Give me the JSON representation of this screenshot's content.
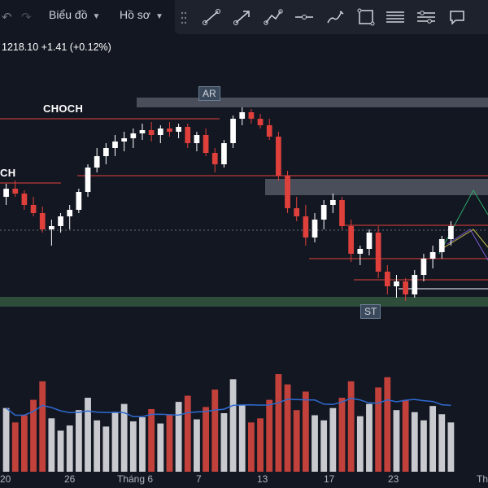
{
  "toolbar": {
    "menu_chart": "Biểu đồ",
    "menu_profile": "Hồ sơ",
    "tools": [
      "trend-line-icon",
      "arrow-line-icon",
      "path-icon",
      "horizontal-line-icon",
      "brush-icon",
      "rectangle-icon",
      "text-lines-icon",
      "settings-lines-icon",
      "comment-icon"
    ]
  },
  "price_readout": "1218.10  +1.41 (+0.12%)",
  "labels": {
    "choch_top": "CHOCH",
    "choch_left": "CH",
    "ar": "AR",
    "st": "ST"
  },
  "colors": {
    "up": "#ffffff",
    "down": "#e0403b",
    "line": "#e0403b",
    "ma": "#2f6ad0"
  },
  "chart_data": {
    "type": "candlestick",
    "x_ticks": [
      "20",
      "26",
      "Tháng 6",
      "7",
      "13",
      "17",
      "23",
      "Th"
    ],
    "ohlc": [
      [
        1170,
        1178,
        1165,
        1175
      ],
      [
        1175,
        1180,
        1170,
        1172
      ],
      [
        1172,
        1174,
        1162,
        1165
      ],
      [
        1165,
        1170,
        1158,
        1160
      ],
      [
        1160,
        1164,
        1148,
        1150
      ],
      [
        1150,
        1156,
        1140,
        1152
      ],
      [
        1152,
        1160,
        1148,
        1158
      ],
      [
        1158,
        1165,
        1150,
        1162
      ],
      [
        1162,
        1175,
        1160,
        1173
      ],
      [
        1173,
        1190,
        1170,
        1188
      ],
      [
        1188,
        1200,
        1185,
        1195
      ],
      [
        1195,
        1203,
        1190,
        1200
      ],
      [
        1200,
        1208,
        1195,
        1204
      ],
      [
        1204,
        1210,
        1198,
        1206
      ],
      [
        1206,
        1212,
        1200,
        1209
      ],
      [
        1209,
        1215,
        1205,
        1211
      ],
      [
        1211,
        1216,
        1204,
        1208
      ],
      [
        1208,
        1214,
        1203,
        1212
      ],
      [
        1212,
        1216,
        1207,
        1210
      ],
      [
        1210,
        1215,
        1206,
        1213
      ],
      [
        1213,
        1215,
        1200,
        1203
      ],
      [
        1203,
        1210,
        1198,
        1208
      ],
      [
        1208,
        1212,
        1195,
        1197
      ],
      [
        1197,
        1200,
        1185,
        1190
      ],
      [
        1190,
        1205,
        1188,
        1203
      ],
      [
        1203,
        1220,
        1200,
        1218
      ],
      [
        1218,
        1225,
        1214,
        1222
      ],
      [
        1222,
        1224,
        1215,
        1218
      ],
      [
        1218,
        1221,
        1212,
        1214
      ],
      [
        1214,
        1218,
        1205,
        1207
      ],
      [
        1207,
        1210,
        1180,
        1183
      ],
      [
        1183,
        1186,
        1160,
        1163
      ],
      [
        1163,
        1170,
        1155,
        1158
      ],
      [
        1158,
        1165,
        1140,
        1145
      ],
      [
        1145,
        1160,
        1142,
        1156
      ],
      [
        1156,
        1168,
        1150,
        1165
      ],
      [
        1165,
        1172,
        1160,
        1168
      ],
      [
        1168,
        1170,
        1150,
        1152
      ],
      [
        1152,
        1156,
        1130,
        1135
      ],
      [
        1135,
        1140,
        1128,
        1138
      ],
      [
        1138,
        1150,
        1134,
        1148
      ],
      [
        1148,
        1152,
        1120,
        1124
      ],
      [
        1124,
        1128,
        1110,
        1115
      ],
      [
        1115,
        1122,
        1108,
        1118
      ],
      [
        1118,
        1120,
        1106,
        1110
      ],
      [
        1110,
        1125,
        1108,
        1122
      ],
      [
        1122,
        1135,
        1118,
        1132
      ],
      [
        1132,
        1140,
        1126,
        1136
      ],
      [
        1136,
        1146,
        1132,
        1144
      ],
      [
        1144,
        1155,
        1140,
        1152
      ]
    ],
    "volume": [
      62,
      48,
      55,
      70,
      88,
      52,
      40,
      45,
      60,
      72,
      50,
      44,
      58,
      66,
      49,
      53,
      61,
      47,
      55,
      68,
      74,
      51,
      63,
      80,
      57,
      90,
      65,
      48,
      52,
      70,
      95,
      85,
      60,
      78,
      55,
      50,
      62,
      72,
      88,
      54,
      66,
      82,
      92,
      60,
      70,
      58,
      50,
      64,
      56,
      48
    ],
    "price_range": [
      1100,
      1240
    ]
  }
}
